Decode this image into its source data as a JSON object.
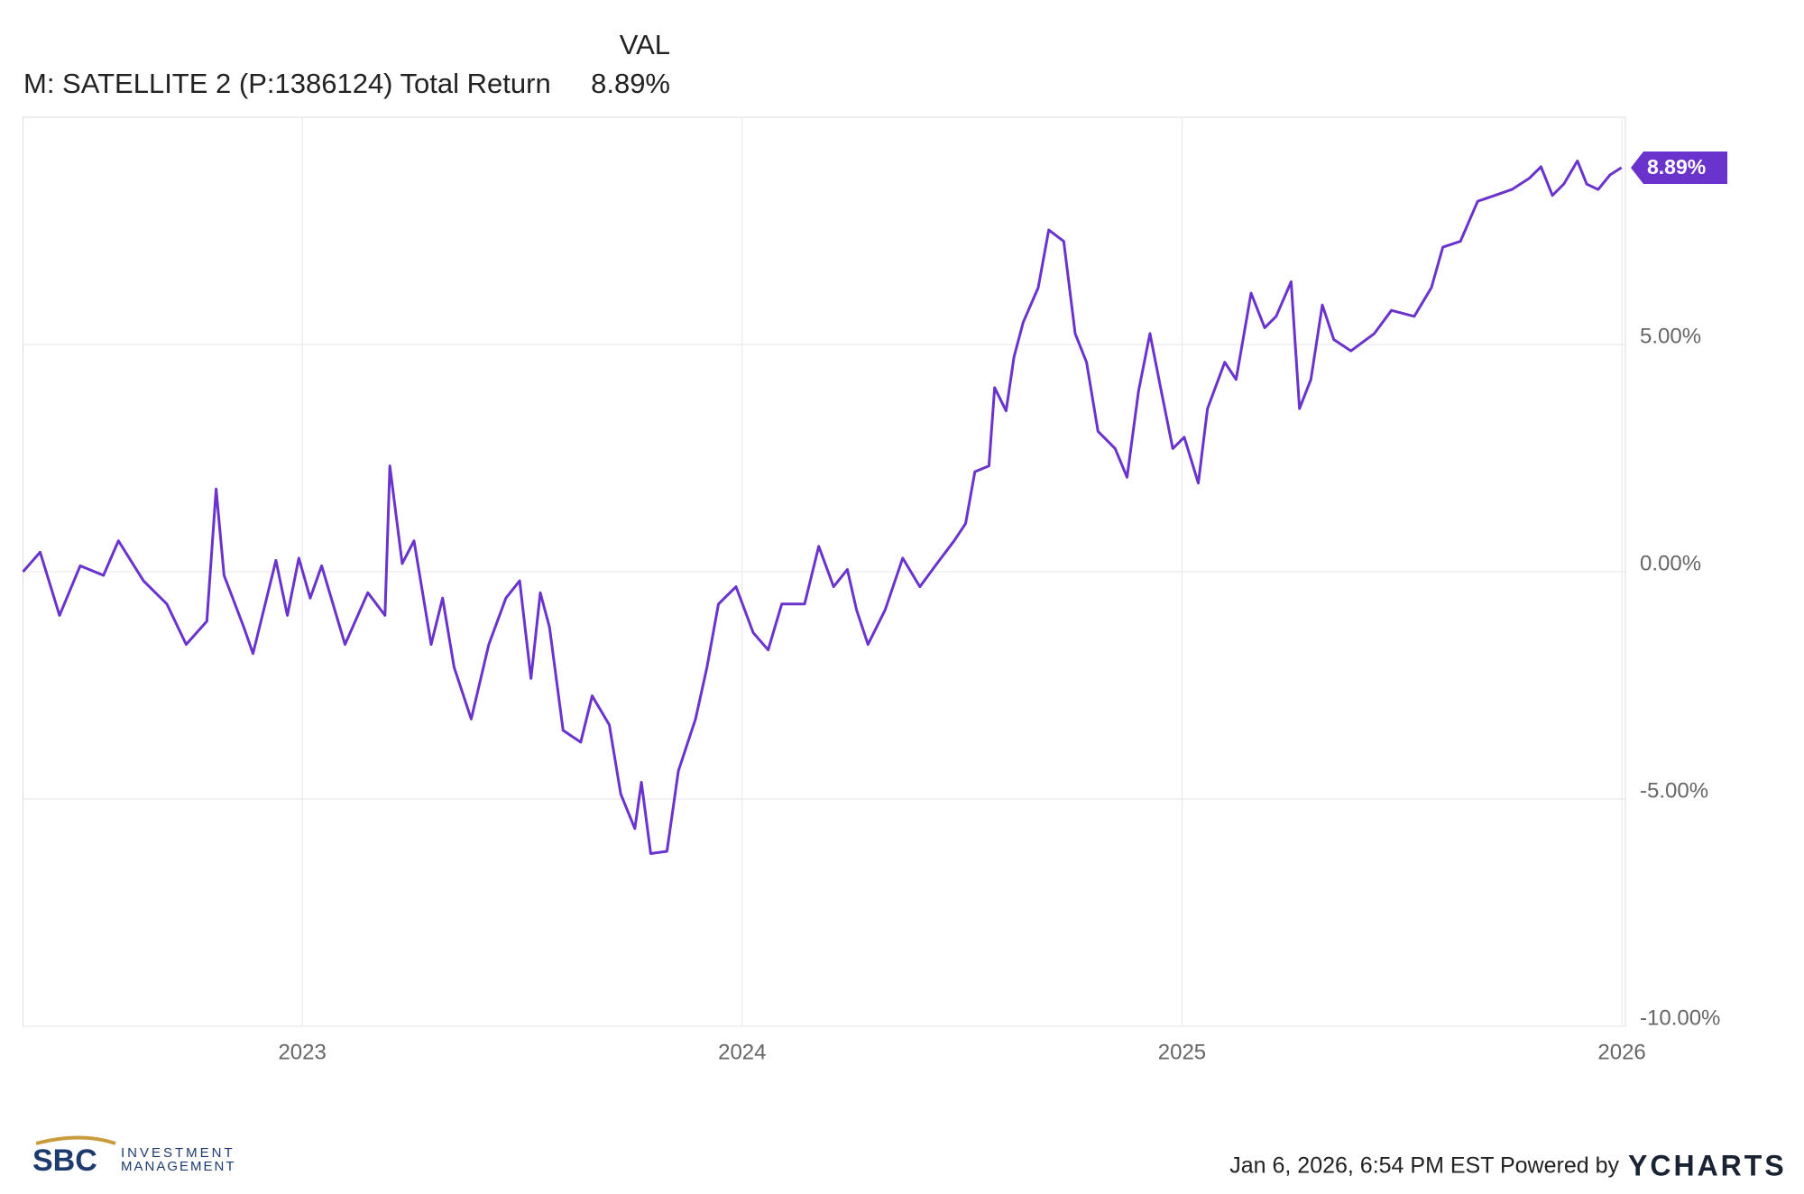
{
  "chart_data": {
    "type": "line",
    "value_header": "VAL",
    "x": [
      2022.365,
      2022.404,
      2022.448,
      2022.495,
      2022.548,
      2022.582,
      2022.639,
      2022.692,
      2022.736,
      2022.783,
      2022.804,
      2022.822,
      2022.867,
      2022.888,
      2022.94,
      2022.966,
      2022.992,
      2023.018,
      2023.044,
      2023.097,
      2023.149,
      2023.188,
      2023.199,
      2023.227,
      2023.254,
      2023.293,
      2023.319,
      2023.345,
      2023.384,
      2023.424,
      2023.463,
      2023.494,
      2023.52,
      2023.541,
      2023.562,
      2023.593,
      2023.633,
      2023.659,
      2023.698,
      2023.724,
      2023.756,
      2023.771,
      2023.792,
      2023.829,
      2023.855,
      2023.894,
      2023.92,
      2023.946,
      2023.986,
      2024.025,
      2024.059,
      2024.09,
      2024.142,
      2024.174,
      2024.208,
      2024.239,
      2024.26,
      2024.286,
      2024.325,
      2024.365,
      2024.404,
      2024.443,
      2024.482,
      2024.508,
      2024.529,
      2024.561,
      2024.574,
      2024.6,
      2024.618,
      2024.639,
      2024.673,
      2024.697,
      2024.731,
      2024.757,
      2024.783,
      2024.809,
      2024.848,
      2024.875,
      2024.901,
      2024.927,
      2024.953,
      2024.979,
      2025.005,
      2025.037,
      2025.058,
      2025.097,
      2025.123,
      2025.157,
      2025.188,
      2025.214,
      2025.248,
      2025.267,
      2025.293,
      2025.319,
      2025.345,
      2025.384,
      2025.437,
      2025.476,
      2025.528,
      2025.567,
      2025.593,
      2025.633,
      2025.672,
      2025.711,
      2025.75,
      2025.79,
      2025.816,
      2025.842,
      2025.868,
      2025.899,
      2025.92,
      2025.946,
      2025.973,
      2025.999
    ],
    "series": [
      {
        "name": "M: SATELLITE 2 (P:1386124) Total Return",
        "color": "#6a33cc",
        "current": 8.89,
        "current_label": "8.89%",
        "values": [
          0,
          0.43,
          -0.96,
          0.13,
          -0.08,
          0.68,
          -0.2,
          -0.71,
          -1.6,
          -1.09,
          1.82,
          -0.08,
          -1.22,
          -1.8,
          0.25,
          -0.96,
          0.3,
          -0.58,
          0.13,
          -1.6,
          -0.46,
          -0.96,
          2.33,
          0.18,
          0.68,
          -1.6,
          -0.58,
          -2.1,
          -3.24,
          -1.6,
          -0.58,
          -0.2,
          -2.35,
          -0.46,
          -1.22,
          -3.49,
          -3.75,
          -2.73,
          -3.37,
          -4.89,
          -5.65,
          -4.63,
          -6.2,
          -6.15,
          -4.38,
          -3.24,
          -2.1,
          -0.71,
          -0.33,
          -1.34,
          -1.72,
          -0.71,
          -0.71,
          0.56,
          -0.33,
          0.05,
          -0.84,
          -1.6,
          -0.84,
          0.3,
          -0.33,
          0.18,
          0.68,
          1.06,
          2.2,
          2.33,
          4.05,
          3.54,
          4.73,
          5.49,
          6.25,
          7.52,
          7.27,
          5.24,
          4.61,
          3.09,
          2.71,
          2.08,
          3.97,
          5.24,
          3.97,
          2.71,
          2.96,
          1.95,
          3.59,
          4.61,
          4.23,
          6.13,
          5.37,
          5.62,
          6.38,
          3.59,
          4.23,
          5.87,
          5.11,
          4.86,
          5.24,
          5.75,
          5.62,
          6.25,
          7.14,
          7.27,
          8.15,
          8.28,
          8.41,
          8.66,
          8.91,
          8.28,
          8.53,
          9.04,
          8.53,
          8.41,
          8.73,
          8.89
        ]
      }
    ],
    "xlim": [
      2022.365,
      2026.008
    ],
    "xticks": [
      2023,
      2024,
      2025,
      2026
    ],
    "ylim": [
      -10,
      10
    ],
    "yticks": [
      {
        "value": -10,
        "label": "-10.00%"
      },
      {
        "value": -5,
        "label": "-5.00%"
      },
      {
        "value": 0,
        "label": "0.00%"
      },
      {
        "value": 5,
        "label": "5.00%"
      }
    ],
    "grid": true
  },
  "footer": {
    "timestamp": "Jan 6, 2026, 6:54 PM EST Powered by",
    "brand": "YCHARTS",
    "logo": {
      "mark": "SBC",
      "line1": "INVESTMENT",
      "line2": "MANAGEMENT"
    }
  }
}
